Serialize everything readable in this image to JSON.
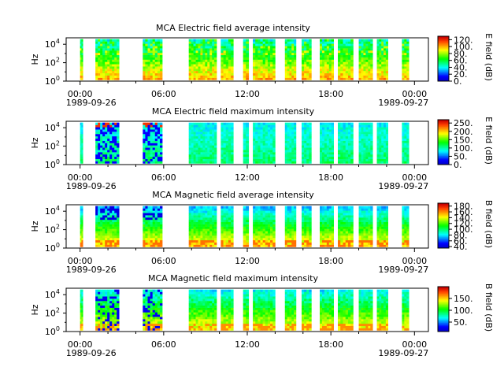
{
  "chart_data": [
    {
      "type": "heatmap",
      "title": "MCA  Electric field average intensity",
      "ylabel": "Hz",
      "colorbar_label": "E field (dB)",
      "colorbar_ticks": [
        "0.",
        "20.",
        "40.",
        "60.",
        "80.",
        "100.",
        "120."
      ],
      "colorbar_range": [
        0,
        130
      ],
      "y_ticks": [
        {
          "base": "10",
          "exp": "0"
        },
        {
          "base": "10",
          "exp": "2"
        },
        {
          "base": "10",
          "exp": "4"
        }
      ],
      "y_range_log10": [
        0,
        4.7
      ],
      "x_ticks": [
        "00:00",
        "06:00",
        "12:00",
        "18:00",
        "00:00"
      ],
      "x_tick_hours": [
        0,
        6,
        12,
        18,
        24
      ],
      "x_range_hours": [
        -1,
        25
      ],
      "date_left": "1989-09-26",
      "date_right": "1989-09-27",
      "variant": "e_avg"
    },
    {
      "type": "heatmap",
      "title": "MCA  Electric field maximum intensity",
      "ylabel": "Hz",
      "colorbar_label": "E field (dB)",
      "colorbar_ticks": [
        "0.",
        "50.",
        "100.",
        "150.",
        "200.",
        "250."
      ],
      "colorbar_range": [
        0,
        270
      ],
      "y_ticks": [
        {
          "base": "10",
          "exp": "0"
        },
        {
          "base": "10",
          "exp": "2"
        },
        {
          "base": "10",
          "exp": "4"
        }
      ],
      "y_range_log10": [
        0,
        4.7
      ],
      "x_ticks": [
        "00:00",
        "06:00",
        "12:00",
        "18:00",
        "00:00"
      ],
      "x_tick_hours": [
        0,
        6,
        12,
        18,
        24
      ],
      "x_range_hours": [
        -1,
        25
      ],
      "date_left": "1989-09-26",
      "date_right": "1989-09-27",
      "variant": "e_max"
    },
    {
      "type": "heatmap",
      "title": "MCA  Magnetic field average intensity",
      "ylabel": "Hz",
      "colorbar_label": "B field (dB)",
      "colorbar_ticks": [
        "40.",
        "60.",
        "80.",
        "100.",
        "120.",
        "140.",
        "160.",
        "180."
      ],
      "colorbar_range": [
        35,
        190
      ],
      "y_ticks": [
        {
          "base": "10",
          "exp": "0"
        },
        {
          "base": "10",
          "exp": "2"
        },
        {
          "base": "10",
          "exp": "4"
        }
      ],
      "y_range_log10": [
        0,
        4.7
      ],
      "x_ticks": [
        "00:00",
        "06:00",
        "12:00",
        "18:00",
        "00:00"
      ],
      "x_tick_hours": [
        0,
        6,
        12,
        18,
        24
      ],
      "x_range_hours": [
        -1,
        25
      ],
      "date_left": "1989-09-26",
      "date_right": "1989-09-27",
      "variant": "b_avg"
    },
    {
      "type": "heatmap",
      "title": "MCA  Magnetic field maximum intensity",
      "ylabel": "Hz",
      "colorbar_label": "B field (dB)",
      "colorbar_ticks": [
        "50.",
        "100.",
        "150."
      ],
      "colorbar_range": [
        10,
        200
      ],
      "y_ticks": [
        {
          "base": "10",
          "exp": "0"
        },
        {
          "base": "10",
          "exp": "2"
        },
        {
          "base": "10",
          "exp": "4"
        }
      ],
      "y_range_log10": [
        0,
        4.7
      ],
      "x_ticks": [
        "00:00",
        "06:00",
        "12:00",
        "18:00",
        "00:00"
      ],
      "x_tick_hours": [
        0,
        6,
        12,
        18,
        24
      ],
      "x_range_hours": [
        -1,
        25
      ],
      "date_left": "1989-09-26",
      "date_right": "1989-09-27",
      "variant": "b_max"
    }
  ],
  "data_intervals_hours": [
    [
      0.0,
      0.2
    ],
    [
      1.1,
      2.8
    ],
    [
      4.5,
      5.9
    ],
    [
      7.8,
      9.8
    ],
    [
      10.1,
      11.0
    ],
    [
      11.7,
      12.1
    ],
    [
      12.4,
      14.0
    ],
    [
      14.7,
      15.5
    ],
    [
      15.9,
      16.6
    ],
    [
      17.2,
      18.2
    ],
    [
      18.5,
      19.6
    ],
    [
      20.0,
      21.0
    ],
    [
      21.3,
      22.1
    ],
    [
      23.1,
      23.6
    ]
  ],
  "colormap": [
    "#0000c8",
    "#0000ff",
    "#0080ff",
    "#00ffff",
    "#00ff80",
    "#00ff00",
    "#80ff00",
    "#ffff00",
    "#ffa000",
    "#ff4000",
    "#c80000"
  ]
}
